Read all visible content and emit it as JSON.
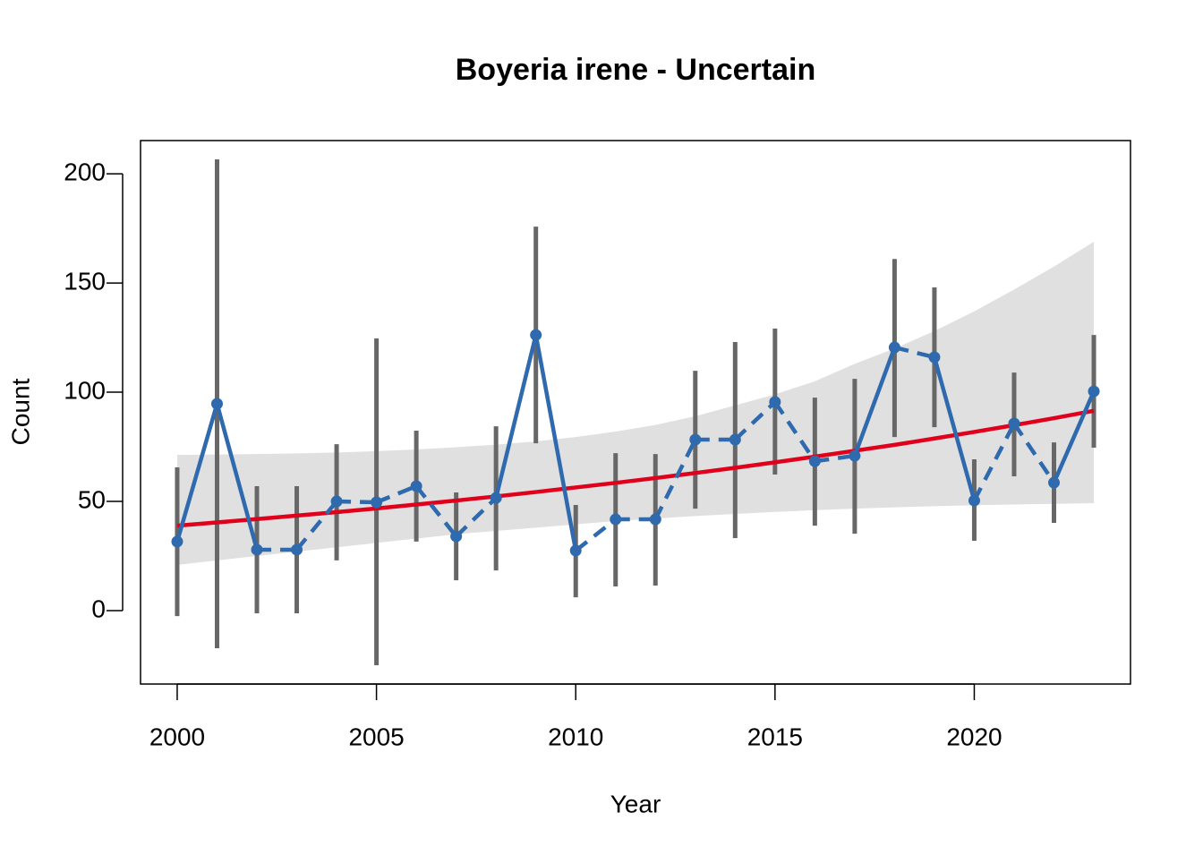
{
  "chart_data": {
    "type": "line",
    "title": "Boyeria irene - Uncertain",
    "x_label": "Year",
    "y_label": "Count",
    "x": [
      2000,
      2001,
      2002,
      2003,
      2004,
      2005,
      2006,
      2007,
      2008,
      2009,
      2010,
      2011,
      2012,
      2013,
      2014,
      2015,
      2016,
      2017,
      2018,
      2019,
      2020,
      2021,
      2022,
      2023
    ],
    "series": [
      {
        "color": "#2e6aad",
        "values": [
          31.6,
          94.7,
          27.9,
          27.9,
          50,
          49.6,
          57,
          34,
          51.6,
          126.2,
          27.5,
          41.8,
          41.8,
          78.3,
          78.3,
          95.5,
          68.4,
          70.9,
          120.5,
          116,
          50.4,
          85.7,
          58.6,
          100.4
        ],
        "lower": [
          -2.5,
          -17.2,
          -1.2,
          -1.2,
          23,
          -25,
          31.6,
          13.9,
          18.4,
          76.6,
          6.1,
          11.1,
          11.5,
          46.7,
          33.2,
          62.3,
          38.9,
          35.2,
          79.5,
          84,
          32,
          61.5,
          40.2,
          74.6
        ],
        "upper": [
          65.6,
          206.6,
          57,
          57,
          76.2,
          124.6,
          82.4,
          54.1,
          84.4,
          175.8,
          48.4,
          72.1,
          71.7,
          109.8,
          123,
          129.1,
          97.5,
          106.1,
          161,
          148,
          69.3,
          109,
          77,
          126.2
        ],
        "error_color": "#676767",
        "segment_styles": [
          "solid",
          "solid",
          "dashed",
          "dashed",
          "dashed",
          "dashed",
          "dashed",
          "dashed",
          "solid",
          "solid",
          "dashed",
          "dashed",
          "dashed",
          "dashed",
          "dashed",
          "dashed",
          "dashed",
          "solid",
          "dashed",
          "solid",
          "dashed",
          "dashed",
          "solid"
        ]
      }
    ],
    "trend": {
      "color": "#e0001b",
      "band_color": "#e0e0e0",
      "values": [
        38.9,
        40.4,
        41.9,
        43.5,
        45.1,
        46.8,
        48.6,
        50.4,
        52.3,
        54.3,
        56.4,
        58.5,
        60.7,
        63.0,
        65.4,
        67.9,
        70.5,
        73.2,
        75.9,
        78.8,
        81.8,
        84.9,
        88.1,
        91.5
      ],
      "lower": [
        20.9,
        23,
        25,
        27,
        29,
        31,
        33,
        35,
        36.5,
        38,
        39.5,
        41,
        42.2,
        43.3,
        44.3,
        45.2,
        46,
        46.7,
        47.3,
        47.8,
        48.3,
        48.6,
        48.9,
        49.2
      ],
      "upper": [
        71.3,
        71.5,
        71.7,
        72,
        72.4,
        73,
        73.8,
        74.8,
        76,
        77.5,
        79.5,
        82,
        85,
        89,
        94,
        99,
        105,
        113,
        120,
        128,
        137,
        147,
        157.5,
        168.9
      ]
    },
    "xlim": [
      1999.08,
      2023.92
    ],
    "xticks": [
      2000,
      2005,
      2010,
      2015,
      2020
    ],
    "ylim": [
      -33.6,
      215.2
    ],
    "yticks": [
      0,
      50,
      100,
      150,
      200
    ]
  }
}
